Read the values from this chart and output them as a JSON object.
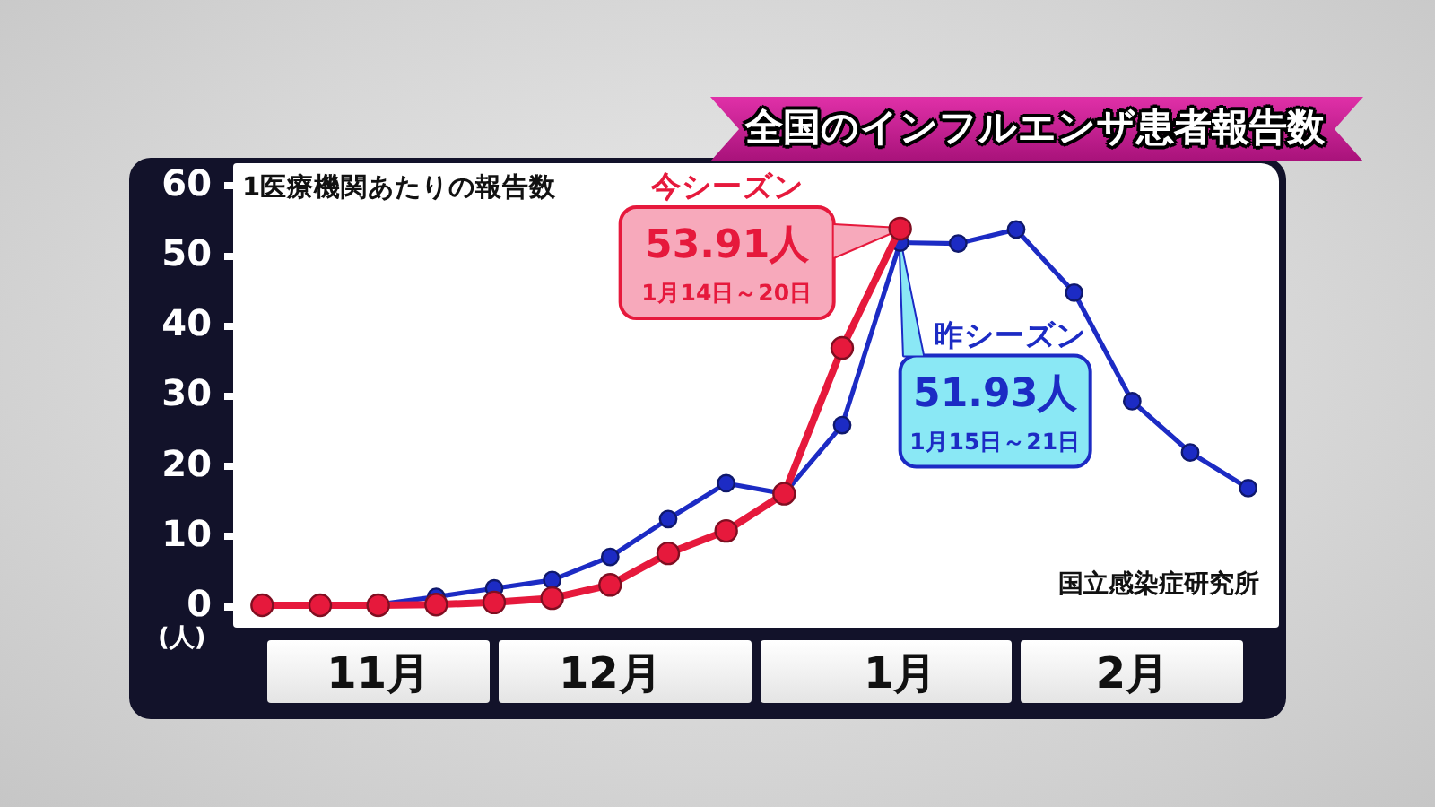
{
  "chart_data": {
    "type": "line",
    "title": "全国のインフルエンザ患者報告数",
    "subtitle": "1医療機関あたりの報告数",
    "ylabel": "(人)",
    "categories": [
      null,
      null,
      "11月",
      null,
      null,
      null,
      "12月",
      null,
      null,
      null,
      null,
      "1月",
      null,
      null,
      null,
      "2月",
      null,
      null
    ],
    "ylim": [
      -3,
      63
    ],
    "yticks": [
      0,
      10,
      20,
      30,
      40,
      50,
      60
    ],
    "series": [
      {
        "name": "今シーズン",
        "color": "#e6193c",
        "values": [
          0.2,
          0.2,
          0.2,
          0.3,
          0.6,
          1.2,
          3.1,
          7.6,
          10.8,
          16.1,
          36.9,
          53.91,
          null,
          null,
          null,
          null,
          null,
          null
        ],
        "value_labels": [
          null,
          null,
          null,
          null,
          null,
          null,
          null,
          null,
          null,
          null,
          null,
          "53.91人",
          null,
          null,
          null,
          null,
          null,
          null
        ]
      },
      {
        "name": "昨シーズン",
        "color": "#1c2bc4",
        "values": [
          null,
          null,
          0.3,
          1.4,
          2.6,
          3.8,
          7.1,
          12.5,
          17.6,
          16.1,
          25.9,
          51.93,
          51.8,
          53.8,
          44.8,
          29.3,
          22.0,
          16.9
        ],
        "value_labels": [
          null,
          null,
          null,
          null,
          null,
          null,
          null,
          null,
          null,
          null,
          null,
          "51.93人",
          null,
          null,
          null,
          null,
          null,
          null
        ]
      }
    ],
    "annotations": [
      "1月14日～20日",
      "1月15日～21日",
      "国立感染症研究所"
    ],
    "grid": false,
    "legend": false,
    "marker": "circle",
    "line_style": "solid"
  }
}
